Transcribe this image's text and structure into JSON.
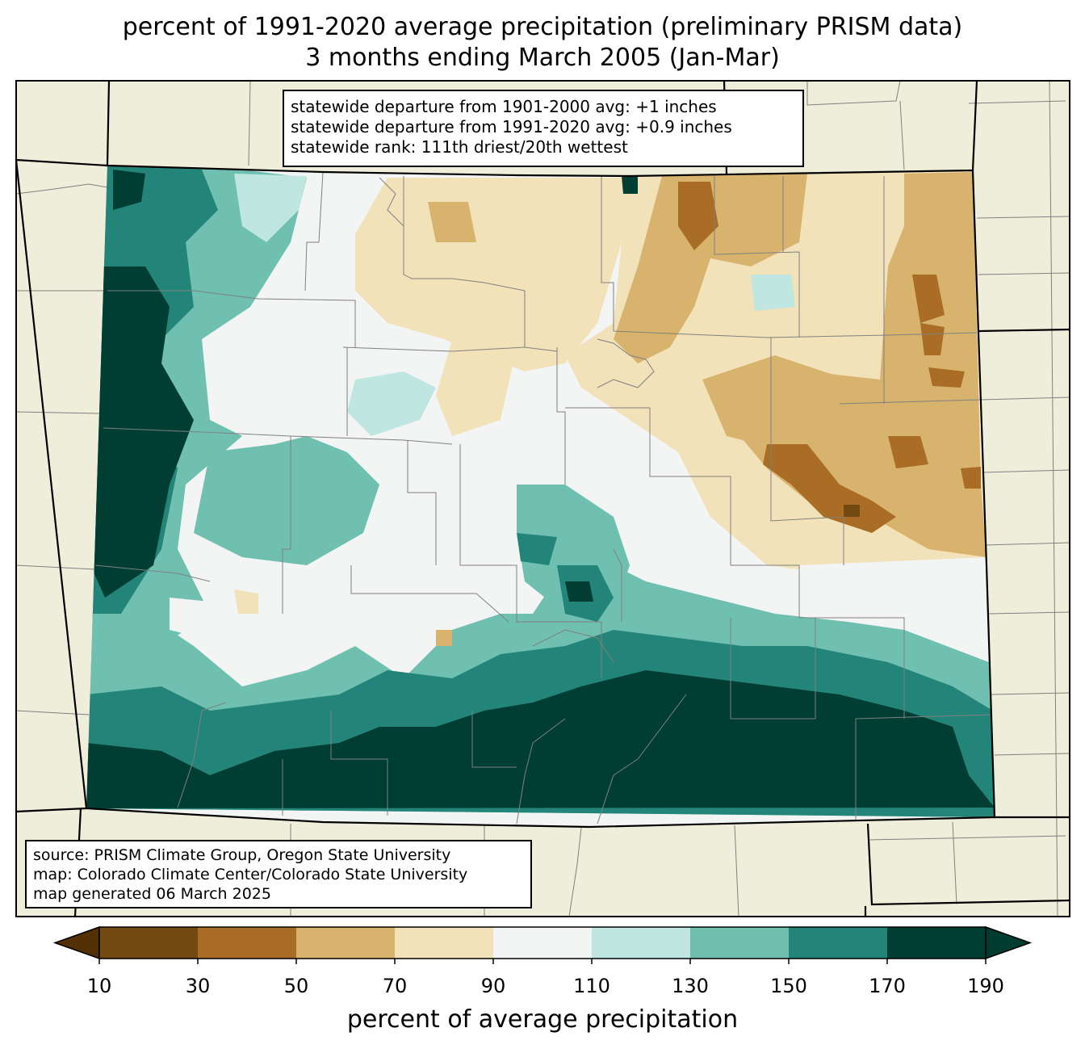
{
  "title_line1": "percent of 1991-2020 average precipitation (preliminary PRISM data)",
  "title_line2": "3 months ending March 2005 (Jan-Mar)",
  "stats": {
    "line1": "statewide departure from 1901-2000 avg: +1 inches",
    "line2": "statewide departure from 1991-2020 avg: +0.9 inches",
    "line3": "statewide rank: 111th driest/20th wettest"
  },
  "source": {
    "line1": "source: PRISM Climate Group, Oregon State University",
    "line2": "map: Colorado Climate Center/Colorado State University",
    "line3": "map generated 06 March 2025"
  },
  "colorbar": {
    "label": "percent of average precipitation",
    "ticks": [
      "10",
      "30",
      "50",
      "70",
      "90",
      "110",
      "130",
      "150",
      "170",
      "190"
    ],
    "colors": [
      "#734a12",
      "#a96d26",
      "#d8b36d",
      "#f2e2b9",
      "#f3f5f4",
      "#bfe6e0",
      "#70c0b2",
      "#238479",
      "#003d32"
    ],
    "under_color": "#543005",
    "over_color": "#003c30"
  },
  "map_colors": {
    "land_outside": "#efeedb",
    "county_lines": "#808080",
    "state_lines": "#000000"
  }
}
